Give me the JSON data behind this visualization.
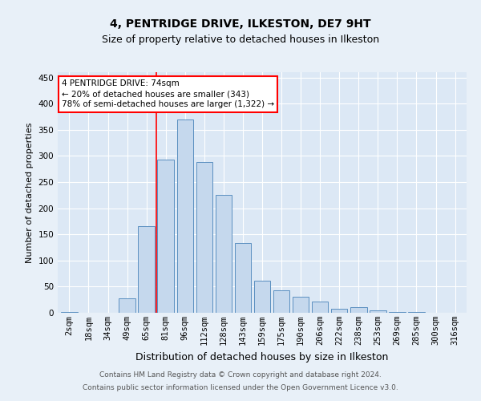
{
  "title": "4, PENTRIDGE DRIVE, ILKESTON, DE7 9HT",
  "subtitle": "Size of property relative to detached houses in Ilkeston",
  "xlabel": "Distribution of detached houses by size in Ilkeston",
  "ylabel": "Number of detached properties",
  "categories": [
    "2sqm",
    "18sqm",
    "34sqm",
    "49sqm",
    "65sqm",
    "81sqm",
    "96sqm",
    "112sqm",
    "128sqm",
    "143sqm",
    "159sqm",
    "175sqm",
    "190sqm",
    "206sqm",
    "222sqm",
    "238sqm",
    "253sqm",
    "269sqm",
    "285sqm",
    "300sqm",
    "316sqm"
  ],
  "values": [
    1,
    0,
    0,
    28,
    165,
    293,
    370,
    288,
    225,
    133,
    62,
    43,
    30,
    22,
    8,
    10,
    5,
    2,
    1,
    0,
    0
  ],
  "bar_color": "#c5d8ed",
  "bar_edge_color": "#5a8fc0",
  "vline_x": 4.5,
  "vline_color": "red",
  "annotation_text": "4 PENTRIDGE DRIVE: 74sqm\n← 20% of detached houses are smaller (343)\n78% of semi-detached houses are larger (1,322) →",
  "annotation_box_color": "white",
  "annotation_box_edge": "red",
  "footer1": "Contains HM Land Registry data © Crown copyright and database right 2024.",
  "footer2": "Contains public sector information licensed under the Open Government Licence v3.0.",
  "ylim": [
    0,
    460
  ],
  "bg_color": "#e8f0f8",
  "plot_bg": "#dce8f5",
  "grid_color": "white",
  "title_fontsize": 10,
  "subtitle_fontsize": 9,
  "xlabel_fontsize": 9,
  "ylabel_fontsize": 8,
  "tick_fontsize": 7.5,
  "annotation_fontsize": 7.5,
  "footer_fontsize": 6.5
}
